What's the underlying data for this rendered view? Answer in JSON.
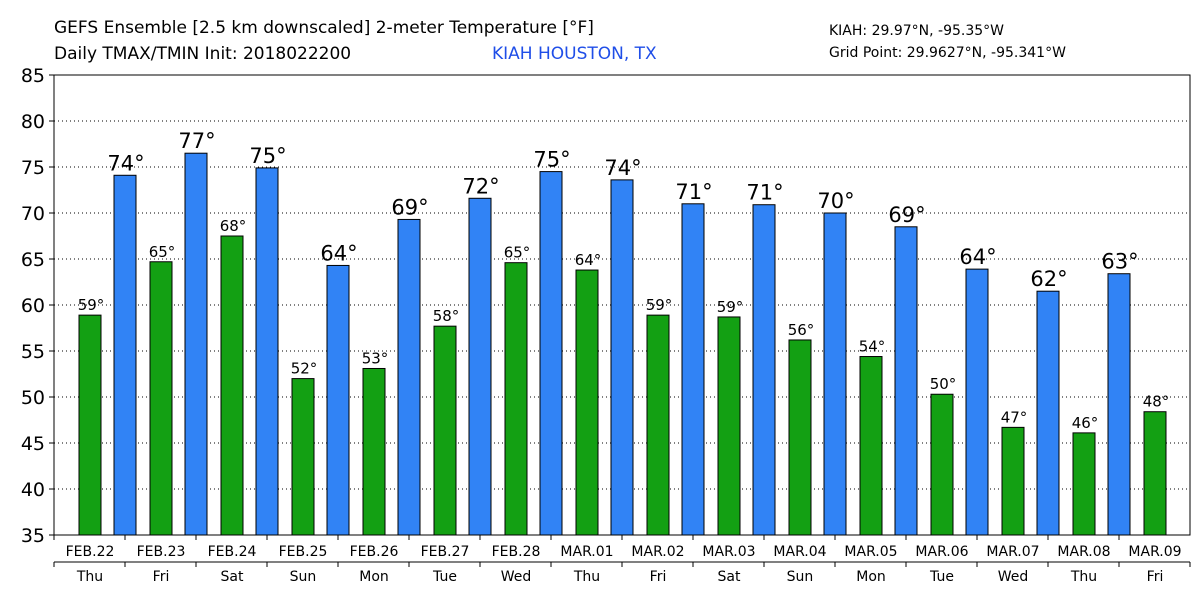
{
  "header": {
    "title_line1": "GEFS Ensemble [2.5 km downscaled] 2-meter Temperature [°F]",
    "title_line2": "Daily TMAX/TMIN Init: 2018022200",
    "station": "KIAH HOUSTON, TX",
    "coord_line1": "KIAH: 29.97°N, -95.35°W",
    "coord_line2": "Grid Point: 29.9627°N, -95.341°W"
  },
  "chart_data": {
    "type": "bar",
    "title": "GEFS Ensemble [2.5 km downscaled] 2-meter Temperature [°F]",
    "ylim": [
      35,
      85
    ],
    "yticks": [
      35,
      40,
      45,
      50,
      55,
      60,
      65,
      70,
      75,
      80,
      85
    ],
    "grid": true,
    "categories": [
      "FEB.22",
      "FEB.23",
      "FEB.24",
      "FEB.25",
      "FEB.26",
      "FEB.27",
      "FEB.28",
      "MAR.01",
      "MAR.02",
      "MAR.03",
      "MAR.04",
      "MAR.05",
      "MAR.06",
      "MAR.07",
      "MAR.08",
      "MAR.09"
    ],
    "weekdays": [
      "Thu",
      "Fri",
      "Sat",
      "Sun",
      "Mon",
      "Tue",
      "Wed",
      "Thu",
      "Fri",
      "Sat",
      "Sun",
      "Mon",
      "Tue",
      "Wed",
      "Thu",
      "Fri"
    ],
    "series": [
      {
        "id": "tmax",
        "color": "#3183f5",
        "values": [
          74.1,
          76.5,
          74.9,
          64.3,
          69.3,
          71.6,
          74.5,
          73.6,
          71.0,
          70.9,
          70.0,
          68.5,
          63.9,
          61.5,
          63.4,
          null
        ],
        "labels": [
          "74°",
          "77°",
          "75°",
          "64°",
          "69°",
          "72°",
          "75°",
          "74°",
          "71°",
          "71°",
          "70°",
          "69°",
          "64°",
          "62°",
          "63°",
          null
        ]
      },
      {
        "id": "tmin",
        "color": "#13a013",
        "values": [
          58.9,
          64.7,
          67.5,
          52.0,
          53.1,
          57.7,
          64.6,
          63.8,
          58.9,
          58.7,
          56.2,
          54.4,
          50.3,
          46.7,
          46.1,
          48.4
        ],
        "labels": [
          "59°",
          "65°",
          "68°",
          "52°",
          "53°",
          "58°",
          "65°",
          "64°",
          "59°",
          "59°",
          "56°",
          "54°",
          "50°",
          "47°",
          "46°",
          "48°"
        ]
      }
    ]
  }
}
